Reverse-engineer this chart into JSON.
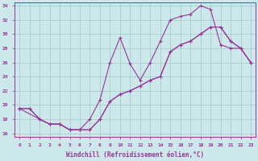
{
  "xlabel": "Windchill (Refroidissement éolien,°C)",
  "bg_color": "#cce8ea",
  "grid_color": "#aacccc",
  "line_color": "#993399",
  "xlim": [
    -0.5,
    23.5
  ],
  "ylim": [
    15.5,
    34.5
  ],
  "xticks": [
    0,
    1,
    2,
    3,
    4,
    5,
    6,
    7,
    8,
    9,
    10,
    11,
    12,
    13,
    14,
    15,
    16,
    17,
    18,
    19,
    20,
    21,
    22,
    23
  ],
  "yticks": [
    16,
    18,
    20,
    22,
    24,
    26,
    28,
    30,
    32,
    34
  ],
  "line1_x": [
    0,
    1,
    2,
    3,
    4,
    5,
    6,
    7,
    8,
    9,
    10,
    11,
    12,
    13,
    14,
    15,
    16,
    17,
    18,
    19,
    20,
    21,
    22,
    23
  ],
  "line1_y": [
    19.5,
    19.5,
    18.0,
    17.3,
    17.3,
    16.5,
    16.5,
    18.0,
    20.7,
    26.0,
    29.5,
    25.8,
    23.5,
    26.0,
    29.0,
    32.0,
    32.5,
    32.8,
    34.0,
    33.5,
    28.5,
    28.0,
    28.0,
    26.0
  ],
  "line2_x": [
    0,
    1,
    2,
    3,
    4,
    5,
    6,
    7,
    8,
    9,
    10,
    11,
    12,
    13,
    14,
    15,
    16,
    17,
    18,
    19,
    20,
    21,
    22,
    23
  ],
  "line2_y": [
    19.5,
    19.5,
    18.0,
    17.3,
    17.3,
    16.5,
    16.5,
    16.5,
    18.0,
    20.5,
    21.5,
    22.0,
    22.7,
    23.5,
    24.0,
    27.5,
    28.5,
    29.0,
    30.0,
    31.0,
    31.0,
    29.0,
    28.0,
    26.0
  ],
  "line3_x": [
    0,
    2,
    3,
    4,
    5,
    6,
    7,
    8,
    9,
    10,
    11,
    12,
    13,
    14,
    15,
    16,
    17,
    18,
    19,
    20,
    21,
    22,
    23
  ],
  "line3_y": [
    19.5,
    18.0,
    17.3,
    17.3,
    16.5,
    16.5,
    16.5,
    18.0,
    20.5,
    21.5,
    22.0,
    22.7,
    23.5,
    24.0,
    27.5,
    28.5,
    29.0,
    30.0,
    31.0,
    31.0,
    29.0,
    28.0,
    26.0
  ]
}
